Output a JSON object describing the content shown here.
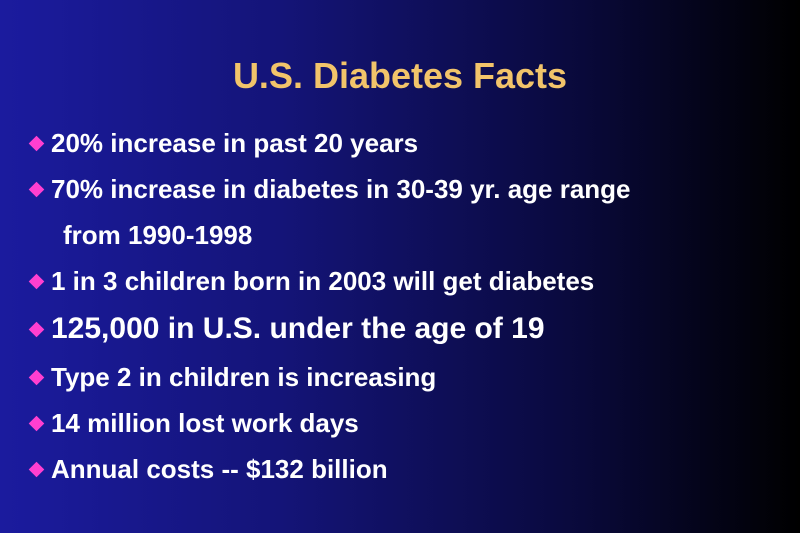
{
  "title": "U.S. Diabetes Facts",
  "bullets": [
    [
      "20% increase in past 20 years"
    ],
    [
      "70% increase in diabetes in 30-39 yr. age range",
      "from 1990-1998"
    ],
    [
      "1 in 3 children born in 2003 will get diabetes"
    ],
    [
      "125,000 in U.S. under the age of 19"
    ],
    [
      "Type 2 in children is increasing"
    ],
    [
      "14 million lost work days"
    ],
    [
      "Annual costs -- $132 billion"
    ]
  ]
}
